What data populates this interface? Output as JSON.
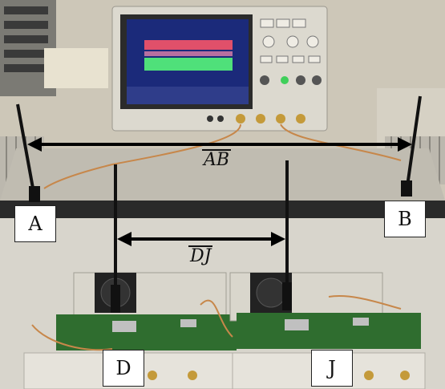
{
  "labels": {
    "antenna_a": "A",
    "antenna_b": "B",
    "board_d": "D",
    "board_j": "J"
  },
  "distances": {
    "ab": "AB",
    "dj": "DJ"
  },
  "scene": {
    "objects": [
      "oscilloscope",
      "antenna",
      "antenna",
      "pcb-board",
      "pcb-board",
      "cooling-fan",
      "cooling-fan"
    ],
    "colors": {
      "wall": "#c9c3b3",
      "table": "#b5b2a8",
      "oscilloscope": "#d9d6cc",
      "screen": "#1b2a7a",
      "pcb": "#2f6d2f",
      "trace_red": "#e0506a",
      "trace_green": "#4fe07a"
    }
  }
}
